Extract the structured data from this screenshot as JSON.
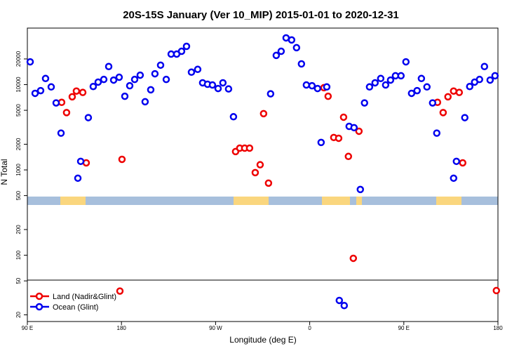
{
  "chart_data": {
    "type": "scatter",
    "title": "20S-15S January (Ver 10_MIP)   2015-01-01 to 2020-12-31",
    "x_label": "Longitude (deg E)",
    "y_label": "N Total",
    "xlim": [
      90,
      540
    ],
    "xticks": [
      {
        "value": 90,
        "label": "90 E"
      },
      {
        "value": 180,
        "label": "180"
      },
      {
        "value": 270,
        "label": "90 W"
      },
      {
        "value": 360,
        "label": "0"
      },
      {
        "value": 450,
        "label": "90 E"
      },
      {
        "value": 540,
        "label": "180"
      }
    ],
    "ylim": [
      16.7,
      46000
    ],
    "yticks": [
      20,
      50,
      100,
      200,
      500,
      1000,
      2000,
      5000,
      10000,
      20000
    ],
    "log_y": true,
    "legend": "bottom-left",
    "series": [
      {
        "name": "Land (Nadir&Glint)",
        "color": "#ee0000",
        "x": [
          122.8,
          127.5,
          132.9,
          136.9,
          143,
          146.3,
          178.5,
          180.5,
          289.1,
          293.1,
          297.8,
          302.5,
          307.9,
          312.6,
          315.9,
          320.6,
          373.6,
          377.6,
          383,
          387.7,
          392.4,
          397,
          401.7,
          407.1,
          482.2,
          487.6,
          492.2,
          497.6,
          503,
          506.3,
          538.5
        ],
        "values": [
          6200,
          4700,
          7200,
          8400,
          8100,
          1210,
          38,
          1330,
          1640,
          1800,
          1800,
          1800,
          930,
          1150,
          4570,
          700,
          9200,
          7300,
          2400,
          2350,
          4150,
          1440,
          92,
          2840,
          6200,
          4700,
          7200,
          8400,
          8100,
          1210,
          38.5
        ]
      },
      {
        "name": "Ocean (Glint)",
        "color": "#0000ee",
        "x": [
          92.7,
          97.4,
          102.7,
          107.4,
          112.8,
          117.5,
          122.2,
          138.3,
          141,
          148.3,
          153,
          157.7,
          163.1,
          167.8,
          172.5,
          177.8,
          183.2,
          187.9,
          192.6,
          197.9,
          202.6,
          208,
          212,
          217.4,
          222.8,
          227.5,
          232.8,
          237.5,
          242.2,
          246.9,
          252.9,
          257.6,
          262.3,
          267,
          272.4,
          277,
          282.4,
          287.1,
          322.6,
          328,
          332.7,
          337.4,
          342.7,
          347.4,
          352.1,
          356.8,
          362.2,
          367.5,
          370.9,
          376.3,
          388.3,
          393,
          397.7,
          402.4,
          408.4,
          412.4,
          417.2,
          422.5,
          427.9,
          432.6,
          437.3,
          442,
          447.3,
          452,
          457.4,
          462.7,
          466.8,
          472.1,
          477.5,
          481.5,
          497.6,
          500.3,
          508.3,
          513,
          517.7,
          522.4,
          527.1,
          532.5,
          537.2
        ],
        "values": [
          18500,
          7900,
          8500,
          11800,
          9400,
          6100,
          2700,
          800,
          1260,
          4100,
          9500,
          10700,
          11500,
          16300,
          11300,
          12200,
          7300,
          9700,
          11500,
          12900,
          6300,
          8700,
          13400,
          16900,
          11500,
          22800,
          22800,
          24600,
          28100,
          14000,
          15100,
          10500,
          10100,
          9900,
          9000,
          10500,
          8900,
          4200,
          7800,
          22000,
          24600,
          35300,
          33400,
          27100,
          17500,
          9900,
          9700,
          9000,
          2100,
          9400,
          29.5,
          25.7,
          3240,
          3130,
          590,
          6100,
          9400,
          10500,
          11800,
          9900,
          11300,
          12700,
          12700,
          18500,
          7900,
          8500,
          11800,
          9400,
          6100,
          2700,
          800,
          1260,
          4100,
          9500,
          10700,
          11500,
          16300,
          11300,
          12700
        ]
      }
    ]
  }
}
